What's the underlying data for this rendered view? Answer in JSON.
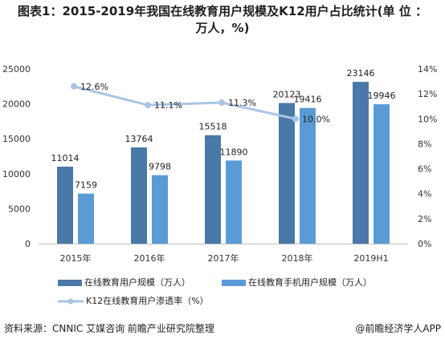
{
  "title": {
    "line1": "图表1：2015-2019年我国在线教育用户规模及K12用户占比统计(单 位 ：",
    "line2": "万人，%)"
  },
  "source": "资料来源：CNNIC 艾媒咨询 前瞻产业研究院整理",
  "brand": "@前瞻经济学人APP",
  "colors": {
    "series1": "#4a78a8",
    "series2": "#5b9bd5",
    "line": "#a9c4e4"
  },
  "chart_data": {
    "type": "bar",
    "categories": [
      "2015年",
      "2016年",
      "2017年",
      "2018年",
      "2019H1"
    ],
    "series": [
      {
        "name": "在线教育用户规模（万人）",
        "values": [
          11014,
          13764,
          15518,
          20123,
          23146
        ],
        "axis": "left",
        "kind": "bar"
      },
      {
        "name": "在线教育手机用户规模（万人）",
        "values": [
          7159,
          9798,
          11890,
          19416,
          19946
        ],
        "axis": "left",
        "kind": "bar"
      },
      {
        "name": "K12在线教育用户渗透率（%）",
        "values": [
          12.6,
          11.1,
          11.3,
          10.0,
          null
        ],
        "labels": [
          "12.6%",
          "11.1%",
          "11.3%",
          "10.0%",
          ""
        ],
        "axis": "right",
        "kind": "line"
      }
    ],
    "ylim_left": [
      0,
      25000
    ],
    "yticks_left": [
      "0",
      "5000",
      "10000",
      "15000",
      "20000",
      "25000"
    ],
    "ylim_right": [
      0,
      14
    ],
    "yticks_right": [
      "0%",
      "2%",
      "4%",
      "6%",
      "8%",
      "10%",
      "12%",
      "14%"
    ],
    "grid": false,
    "legend": "bottom"
  }
}
